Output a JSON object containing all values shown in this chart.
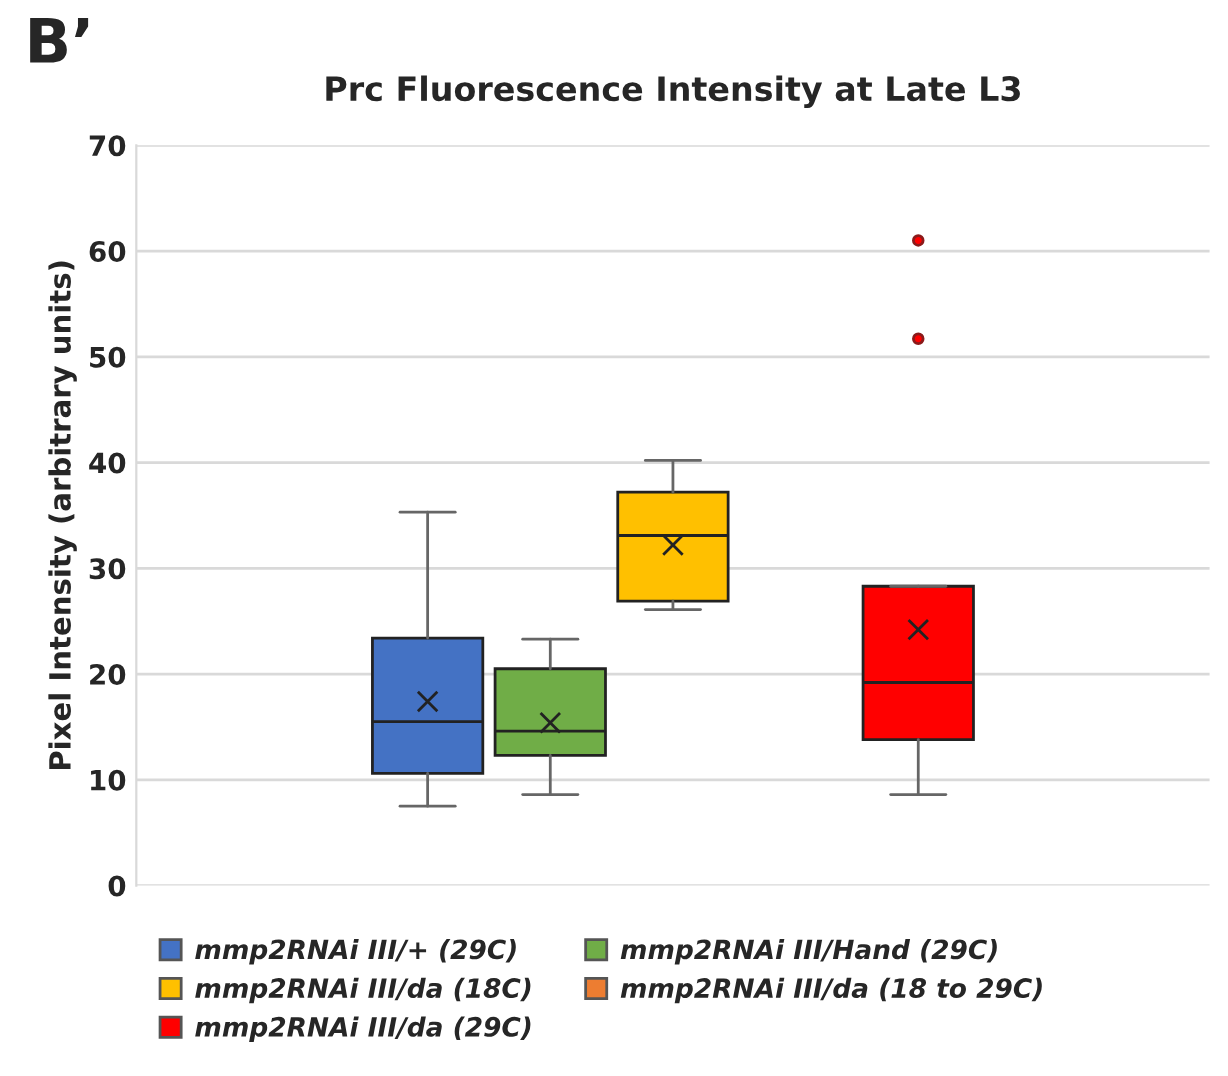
{
  "chart_data": {
    "type": "box",
    "title": "Prc Fluorescence Intensity at Late L3",
    "ylabel": "Pixel Intensity (arbitrary units)",
    "annotations": [
      "B’"
    ],
    "categories": [
      null
    ],
    "series": [
      {
        "name": "mmp2RNAi III/+ (29C)",
        "color": "#4472c4",
        "boxes": [
          {
            "low": 7.5,
            "q1": 10.6,
            "median": 15.5,
            "q3": 23.4,
            "high": 35.3,
            "mean": 17.4
          }
        ]
      },
      {
        "name": "mmp2RNAi III/Hand (29C)",
        "color": "#70ad47",
        "boxes": [
          {
            "low": 8.6,
            "q1": 12.3,
            "median": 14.6,
            "q3": 20.5,
            "high": 23.3,
            "mean": 15.4
          }
        ]
      },
      {
        "name": "mmp2RNAi III/da (18C)",
        "color": "#ffc000",
        "boxes": [
          {
            "low": 26.1,
            "q1": 26.9,
            "median": 33.1,
            "q3": 37.2,
            "high": 40.2,
            "mean": 32.2
          }
        ]
      },
      {
        "name": "mmp2RNAi III/da (18 to 29C)",
        "color": "#ed7d31",
        "boxes": [
          null
        ]
      },
      {
        "name": "mmp2RNAi III/da (29C)",
        "color": "#ff0000",
        "boxes": [
          {
            "low": 8.6,
            "q1": 13.8,
            "median": 19.2,
            "q3": 28.3,
            "high": 28.3,
            "mean": 24.2,
            "outliers": [
              51.7,
              61.0
            ]
          }
        ]
      }
    ],
    "ylim": [
      0,
      70
    ],
    "yticks": [
      0,
      10,
      20,
      30,
      40,
      50,
      60,
      70
    ],
    "grid": "y",
    "legend": "bottom"
  }
}
